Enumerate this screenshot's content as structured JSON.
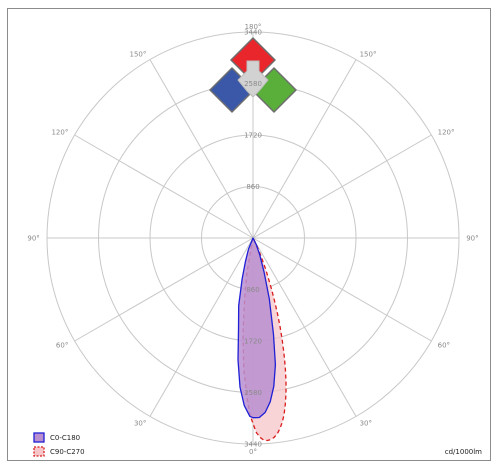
{
  "chart_data": {
    "type": "polar",
    "radial_max": 3440,
    "radial_ticks": [
      {
        "value": 860,
        "label": "860"
      },
      {
        "value": 1720,
        "label": "1720"
      },
      {
        "value": 2580,
        "label": "2580"
      },
      {
        "value": 3440,
        "label": "3440"
      }
    ],
    "angle_labels": [
      {
        "angle": 0,
        "label": "0°"
      },
      {
        "angle": 30,
        "label": "30°"
      },
      {
        "angle": 60,
        "label": "60°"
      },
      {
        "angle": 90,
        "label": "90°"
      },
      {
        "angle": 120,
        "label": "120°"
      },
      {
        "angle": 150,
        "label": "150°"
      },
      {
        "angle": 180,
        "label": "180°"
      },
      {
        "angle": -150,
        "label": "150°"
      },
      {
        "angle": -120,
        "label": "120°"
      },
      {
        "angle": -90,
        "label": "90°"
      },
      {
        "angle": -60,
        "label": "60°"
      },
      {
        "angle": -30,
        "label": "30°"
      }
    ],
    "unit": "cd/1000lm",
    "series": [
      {
        "name": "C0-C180",
        "stroke": "#1f1fd6",
        "fill": "#b98fd0",
        "dash": "",
        "angles": [
          -22,
          -18,
          -15,
          -12,
          -9,
          -7,
          -5,
          -3,
          -1,
          0,
          2,
          4,
          6,
          8,
          10,
          12,
          15,
          18,
          22,
          26
        ],
        "values": [
          200,
          400,
          700,
          1150,
          1550,
          2050,
          2500,
          2800,
          2980,
          3000,
          3000,
          2920,
          2750,
          2500,
          2150,
          1650,
          1050,
          600,
          300,
          120
        ]
      },
      {
        "name": "C90-C270",
        "stroke": "#d91c1c",
        "fill": "#f6c6c8",
        "dash": "4,3",
        "angles": [
          -10,
          -8,
          -6,
          -4,
          -2,
          -1,
          0,
          1,
          2,
          3,
          4,
          5,
          6,
          7,
          8,
          9,
          10,
          11,
          12,
          13,
          14,
          15,
          16,
          17,
          18,
          19,
          20,
          22,
          24,
          27
        ],
        "values": [
          600,
          1000,
          1600,
          2200,
          2700,
          2950,
          3100,
          3250,
          3330,
          3380,
          3390,
          3380,
          3350,
          3300,
          3220,
          3120,
          2990,
          2830,
          2650,
          2450,
          2230,
          2000,
          1770,
          1540,
          1320,
          1100,
          900,
          580,
          320,
          120
        ]
      }
    ],
    "legend_position": "bottom-left",
    "colors": {
      "grid": "#c8c8c8",
      "logo_red": "#e8262b",
      "logo_blue": "#3a57a8",
      "logo_green": "#5aae3a",
      "logo_grey": "#d2d2d2"
    }
  }
}
